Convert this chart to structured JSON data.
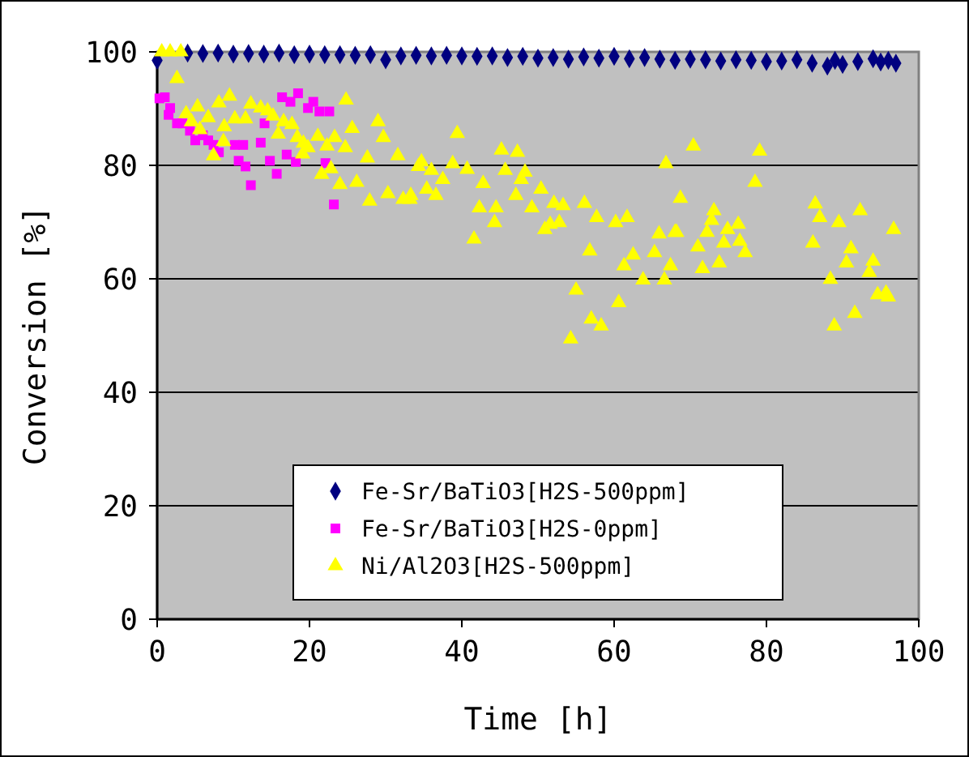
{
  "chart_data": {
    "type": "scatter",
    "xlabel": "Time [h]",
    "ylabel": "Conversion [%]",
    "xlim": [
      0,
      100
    ],
    "ylim": [
      0,
      100
    ],
    "xticks": [
      0,
      20,
      40,
      60,
      80,
      100
    ],
    "yticks": [
      0,
      20,
      40,
      60,
      80,
      100
    ],
    "grid": "y",
    "legend": "bottom",
    "series": [
      {
        "name": "Fe-Sr/BaTiO3[H2S-500ppm]",
        "color": "#000080",
        "marker": "diamond",
        "x": [
          0,
          4,
          6,
          8,
          10,
          12,
          14,
          16,
          18,
          20,
          22,
          24,
          26,
          28,
          30,
          32,
          34,
          36,
          38,
          40,
          42,
          44,
          46,
          48,
          50,
          52,
          54,
          56,
          58,
          60,
          62,
          64,
          66,
          68,
          70,
          72,
          74,
          76,
          78,
          80,
          82,
          84,
          86,
          88,
          89,
          90,
          92,
          94,
          95,
          96,
          97
        ],
        "values": [
          98.5,
          99.8,
          99.7,
          99.8,
          99.6,
          99.7,
          99.6,
          99.8,
          99.5,
          99.6,
          99.5,
          99.5,
          99.4,
          99.5,
          98.6,
          99.3,
          99.4,
          99.3,
          99.4,
          99.3,
          99.2,
          99.3,
          99.0,
          99.2,
          98.9,
          99.0,
          98.7,
          99.1,
          98.9,
          99.2,
          98.8,
          99.0,
          98.7,
          98.5,
          98.7,
          98.6,
          98.4,
          98.6,
          98.5,
          98.3,
          98.4,
          98.6,
          98.0,
          97.5,
          98.5,
          97.8,
          98.3,
          98.8,
          98.2,
          98.5,
          98.0
        ]
      },
      {
        "name": "Fe-Sr/BaTiO3[H2S-0ppm]",
        "color": "#ff00ff",
        "marker": "square",
        "x": [
          0.3,
          1.0,
          1.7,
          1.5,
          2.6,
          3.3,
          4.3,
          5.0,
          6.0,
          6.7,
          7.4,
          8.1,
          10.2,
          11.3,
          10.7,
          11.6,
          12.3,
          13.6,
          14.1,
          14.8,
          15.7,
          16.4,
          17.5,
          18.5,
          19.8,
          20.5,
          21.3,
          22.6,
          17.0,
          18.2,
          22.1,
          23.2
        ],
        "values": [
          91.8,
          92,
          90.1,
          88.9,
          87.4,
          87.4,
          86.1,
          84.4,
          85.3,
          84.4,
          83.6,
          82.3,
          83.6,
          83.6,
          80.8,
          79.8,
          76.5,
          84.0,
          87.4,
          80.8,
          78.5,
          92,
          91.2,
          92.7,
          90.1,
          91.2,
          89.5,
          89.5,
          81.9,
          80.6,
          80.4,
          73.1
        ]
      },
      {
        "name": "Ni/Al2O3[H2S-500ppm]",
        "color": "#ffff00",
        "marker": "triangle",
        "x": [
          0.6,
          1.7,
          3.1,
          2.6,
          5.3,
          3.8,
          4.5,
          5.6,
          6.7,
          8.1,
          9.5,
          8.8,
          10.2,
          11.6,
          12.3,
          13.6,
          14.5,
          15.2,
          16.6,
          17.7,
          15.9,
          18.4,
          19.2,
          21.1,
          23.3,
          25.6,
          24.8,
          29,
          29.7,
          8.7,
          7.4,
          19.1,
          19.8,
          22.3,
          24.7,
          27.6,
          21.6,
          22.8,
          24,
          26.2,
          27.9,
          30.3,
          31.6,
          32.3,
          33.2,
          34.3,
          39.4,
          45.2,
          47.3,
          34.7,
          38.8,
          40.7,
          66.8,
          36,
          45.7,
          48.3,
          37.5,
          42.8,
          47.8,
          35.4,
          50.4,
          33.3,
          36.6,
          47.1,
          42.3,
          44.5,
          49.2,
          52.1,
          53.3,
          56.1,
          44.3,
          57.7,
          60.2,
          61.7,
          51.6,
          52.8,
          50.9,
          41.6,
          65.9,
          68,
          56.8,
          62.5,
          65.3,
          61.3,
          67.4,
          63.8,
          66.6,
          55,
          60.6,
          57,
          58.3,
          54.3,
          70.4,
          79.1,
          78.5,
          68.7,
          73.1,
          86.4,
          92.3,
          72.8,
          87,
          89.5,
          96.7,
          68.2,
          72.2,
          74.9,
          76.3,
          76.5,
          74.4,
          71,
          77.2,
          86.1,
          91.1,
          71.6,
          73.8,
          90.5,
          94,
          88.4,
          93.5,
          94.6,
          96,
          95.7,
          91.6,
          88.9
        ],
        "values": [
          100,
          100,
          100,
          95.3,
          90.3,
          89.1,
          87.7,
          86.3,
          88.4,
          91,
          92.2,
          86.8,
          88.2,
          88.2,
          90.8,
          90.1,
          89.6,
          88.7,
          87.7,
          87.2,
          85.5,
          84.9,
          83.9,
          85.1,
          84.9,
          86.5,
          91.5,
          87.7,
          84.9,
          84.2,
          81.7,
          82,
          83.1,
          83.4,
          83.1,
          81.3,
          78.4,
          79.4,
          76.6,
          77,
          73.7,
          75,
          81.7,
          74,
          74,
          79.8,
          85.6,
          82.7,
          82.3,
          80.6,
          80.3,
          79.3,
          80.3,
          79.1,
          79.1,
          78.8,
          77.5,
          76.8,
          77.5,
          75.8,
          75.8,
          74.7,
          74.7,
          74.7,
          72.5,
          72.5,
          72.5,
          73.3,
          72.9,
          73.3,
          69.9,
          70.8,
          69.9,
          70.8,
          69.6,
          69.9,
          68.7,
          67,
          67.9,
          68.2,
          64.9,
          64.2,
          64.6,
          62.3,
          62.3,
          59.8,
          59.8,
          58,
          55.8,
          52.9,
          51.7,
          49.4,
          83.4,
          82.5,
          77,
          74.2,
          72,
          73.2,
          72,
          70.3,
          70.8,
          69.9,
          68.7,
          68.2,
          68.2,
          68.7,
          69.6,
          66.6,
          66.3,
          65.6,
          64.6,
          66.3,
          65.3,
          61.8,
          62.8,
          62.8,
          63.1,
          59.9,
          61.1,
          57.2,
          56.8,
          57.5,
          53.9,
          51.7
        ]
      }
    ]
  }
}
